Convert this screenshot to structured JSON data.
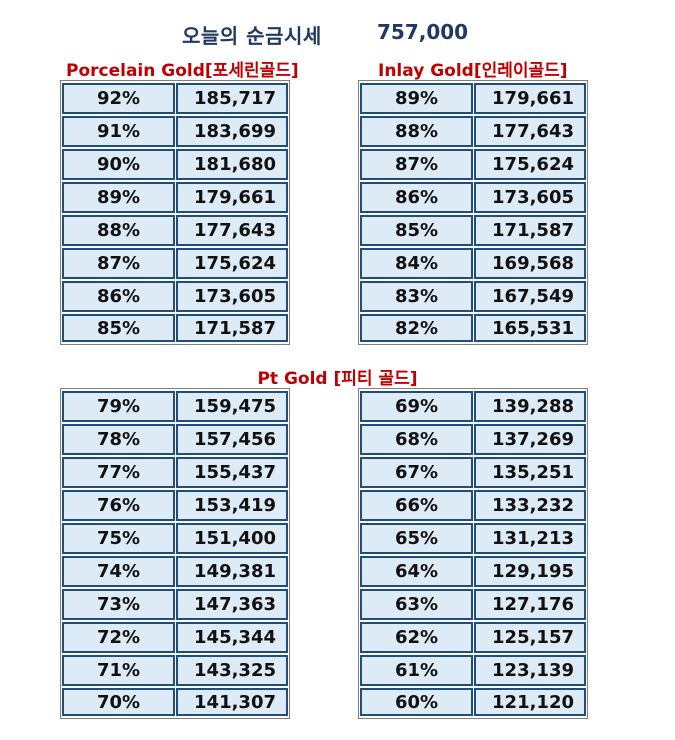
{
  "header": {
    "title": "오늘의 순금시세",
    "price": "757,000"
  },
  "sections": {
    "porcelain": "Porcelain Gold[포세린골드]",
    "inlay": "Inlay Gold[인레이골드]",
    "pt": "Pt Gold [피티 골드]"
  },
  "tables": {
    "porcelain": [
      {
        "pct": "92%",
        "price": "185,717"
      },
      {
        "pct": "91%",
        "price": "183,699"
      },
      {
        "pct": "90%",
        "price": "181,680"
      },
      {
        "pct": "89%",
        "price": "179,661"
      },
      {
        "pct": "88%",
        "price": "177,643"
      },
      {
        "pct": "87%",
        "price": "175,624"
      },
      {
        "pct": "86%",
        "price": "173,605"
      },
      {
        "pct": "85%",
        "price": "171,587"
      }
    ],
    "inlay": [
      {
        "pct": "89%",
        "price": "179,661"
      },
      {
        "pct": "88%",
        "price": "177,643"
      },
      {
        "pct": "87%",
        "price": "175,624"
      },
      {
        "pct": "86%",
        "price": "173,605"
      },
      {
        "pct": "85%",
        "price": "171,587"
      },
      {
        "pct": "84%",
        "price": "169,568"
      },
      {
        "pct": "83%",
        "price": "167,549"
      },
      {
        "pct": "82%",
        "price": "165,531"
      }
    ],
    "pt_left": [
      {
        "pct": "79%",
        "price": "159,475"
      },
      {
        "pct": "78%",
        "price": "157,456"
      },
      {
        "pct": "77%",
        "price": "155,437"
      },
      {
        "pct": "76%",
        "price": "153,419"
      },
      {
        "pct": "75%",
        "price": "151,400"
      },
      {
        "pct": "74%",
        "price": "149,381"
      },
      {
        "pct": "73%",
        "price": "147,363"
      },
      {
        "pct": "72%",
        "price": "145,344"
      },
      {
        "pct": "71%",
        "price": "143,325"
      },
      {
        "pct": "70%",
        "price": "141,307"
      }
    ],
    "pt_right": [
      {
        "pct": "69%",
        "price": "139,288"
      },
      {
        "pct": "68%",
        "price": "137,269"
      },
      {
        "pct": "67%",
        "price": "135,251"
      },
      {
        "pct": "66%",
        "price": "133,232"
      },
      {
        "pct": "65%",
        "price": "131,213"
      },
      {
        "pct": "64%",
        "price": "129,195"
      },
      {
        "pct": "63%",
        "price": "127,176"
      },
      {
        "pct": "62%",
        "price": "125,157"
      },
      {
        "pct": "61%",
        "price": "123,139"
      },
      {
        "pct": "60%",
        "price": "121,120"
      }
    ]
  },
  "colors": {
    "title": "#1f3864",
    "section_heading": "#c00000",
    "cell_fill": "#ddebf7",
    "cell_border": "#1f4e79"
  }
}
